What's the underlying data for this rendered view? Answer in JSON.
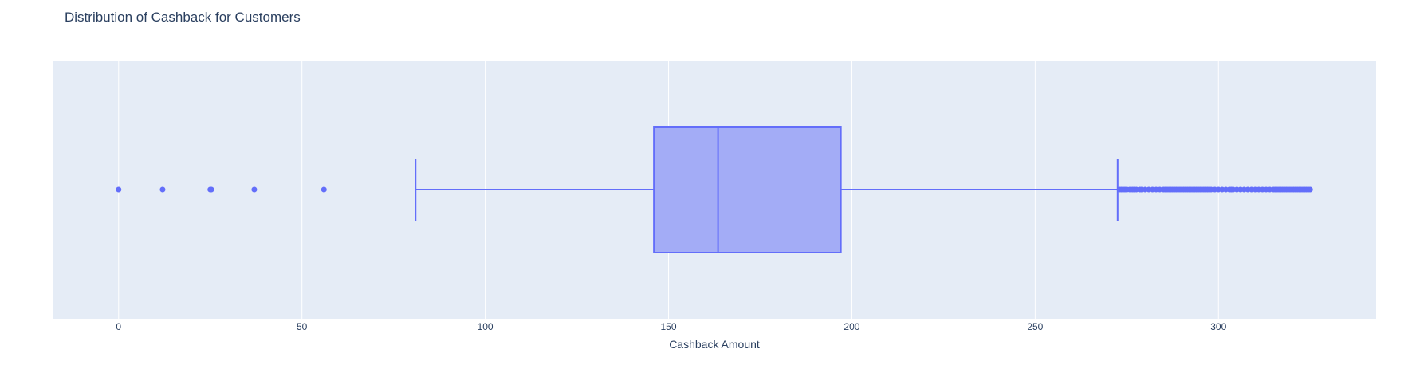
{
  "chart_data": {
    "type": "box",
    "title": "Distribution of Cashback for Customers",
    "xlabel": "Cashback Amount",
    "ylabel": "",
    "xlim": [
      -18,
      343
    ],
    "x_ticks": [
      0,
      50,
      100,
      150,
      200,
      250,
      300
    ],
    "x_tick_labels": [
      "0",
      "50",
      "100",
      "150",
      "200",
      "250",
      "300"
    ],
    "grid": true,
    "orientation": "horizontal",
    "box": {
      "lower_fence": 81,
      "q1": 146,
      "median": 163.5,
      "q3": 197,
      "upper_fence": 272.5,
      "outliers": [
        0,
        12,
        25,
        25.3,
        37,
        56,
        273,
        273.5,
        274,
        274.5,
        275,
        275.8,
        276.5,
        277,
        277.6,
        278.5,
        279,
        280,
        281,
        282,
        283,
        284,
        285,
        285.5,
        286,
        286.5,
        287,
        287.5,
        288,
        288.5,
        289,
        289.5,
        290,
        290.5,
        291,
        291.5,
        292,
        292.5,
        293,
        293.5,
        294,
        294.5,
        295,
        295.5,
        296,
        296.5,
        297,
        297.5,
        298,
        299,
        300,
        301,
        302,
        303,
        303.5,
        304,
        305,
        306,
        307,
        308,
        309,
        310,
        311,
        312,
        313,
        314,
        315,
        315.5,
        316,
        316.5,
        317,
        317.5,
        318,
        318.5,
        319,
        319.5,
        320,
        320.5,
        321,
        321.5,
        322,
        322.5,
        323,
        323.5,
        324,
        324.5,
        325
      ]
    },
    "colors": {
      "plot_bg": "#e5ecf6",
      "grid": "#ffffff",
      "box_fill": "#a3acf6",
      "box_line": "#636efa",
      "text": "#2a3f5f"
    }
  }
}
